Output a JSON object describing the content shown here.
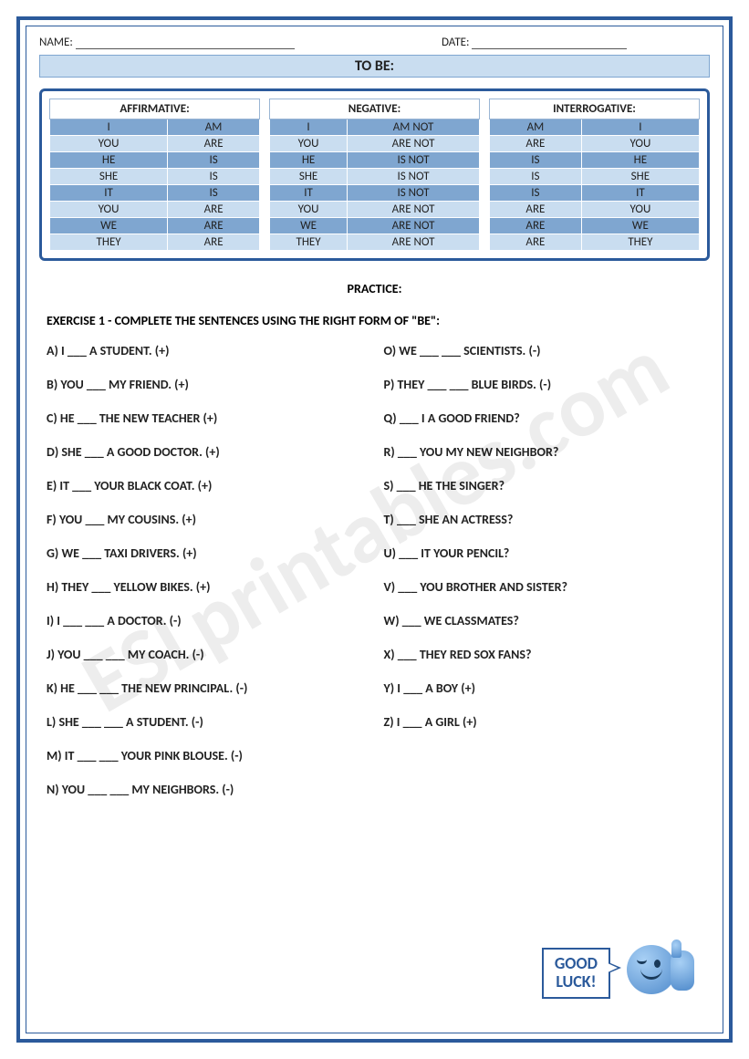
{
  "header": {
    "name_label": "NAME:",
    "date_label": "DATE:"
  },
  "title": "TO BE:",
  "tables": {
    "columns": [
      "AFFIRMATIVE:",
      "NEGATIVE:",
      "INTERROGATIVE:"
    ],
    "affirmative": [
      [
        "I",
        "AM"
      ],
      [
        "YOU",
        "ARE"
      ],
      [
        "HE",
        "IS"
      ],
      [
        "SHE",
        "IS"
      ],
      [
        "IT",
        "IS"
      ],
      [
        "YOU",
        "ARE"
      ],
      [
        "WE",
        "ARE"
      ],
      [
        "THEY",
        "ARE"
      ]
    ],
    "negative": [
      [
        "I",
        "AM NOT"
      ],
      [
        "YOU",
        "ARE NOT"
      ],
      [
        "HE",
        "IS NOT"
      ],
      [
        "SHE",
        "IS NOT"
      ],
      [
        "IT",
        "IS NOT"
      ],
      [
        "YOU",
        "ARE NOT"
      ],
      [
        "WE",
        "ARE NOT"
      ],
      [
        "THEY",
        "ARE NOT"
      ]
    ],
    "interrogative": [
      [
        "AM",
        "I"
      ],
      [
        "ARE",
        "YOU"
      ],
      [
        "IS",
        "HE"
      ],
      [
        "IS",
        "SHE"
      ],
      [
        "IS",
        "IT"
      ],
      [
        "ARE",
        "YOU"
      ],
      [
        "ARE",
        "WE"
      ],
      [
        "ARE",
        "THEY"
      ]
    ],
    "row_shades": [
      "dark",
      "light",
      "dark",
      "light",
      "dark",
      "light",
      "dark",
      "light"
    ]
  },
  "practice_label": "PRACTICE:",
  "exercise_label": "EXERCISE 1 - COMPLETE THE SENTENCES USING THE RIGHT FORM OF \"BE\":",
  "left_items": [
    "A) I ___ A STUDENT. (+)",
    "B) YOU ___ MY FRIEND. (+)",
    "C) HE ___ THE NEW TEACHER (+)",
    "D) SHE ___ A GOOD DOCTOR. (+)",
    "E) IT ___ YOUR BLACK COAT. (+)",
    "F) YOU ___ MY COUSINS. (+)",
    "G) WE ___ TAXI DRIVERS. (+)",
    "H) THEY ___ YELLOW BIKES. (+)",
    "I) I ___  ___ A DOCTOR. (-)",
    "J) YOU ___  ___ MY COACH. (-)",
    "K) HE ___  ___ THE NEW PRINCIPAL. (-)",
    "L) SHE ___  ___ A STUDENT. (-)",
    "M) IT ___  ___  YOUR  PINK BLOUSE. (-)",
    "N) YOU ___  ___ MY NEIGHBORS. (-)"
  ],
  "right_items": [
    "O) WE ___  ___  SCIENTISTS. (-)",
    "P) THEY ___  ___  BLUE BIRDS. (-)",
    "Q) ___ I A GOOD FRIEND?",
    "R) ___ YOU MY NEW NEIGHBOR?",
    "S) ___ HE THE SINGER?",
    "T) ___ SHE AN ACTRESS?",
    "U) ___ IT YOUR PENCIL?",
    "V) ___ YOU BROTHER AND SISTER?",
    "W) ___ WE CLASSMATES?",
    "X) ___ THEY RED SOX FANS?",
    "Y) I ___ A BOY (+)",
    "Z) I ___ A GIRL (+)"
  ],
  "good_luck": "GOOD LUCK!",
  "watermark": "ESLprintables.com",
  "colors": {
    "frame_border": "#2b5a9b",
    "title_bg": "#c9ddf0",
    "row_dark": "#7fa6d0",
    "row_light": "#c9ddf0",
    "text": "#222222"
  }
}
